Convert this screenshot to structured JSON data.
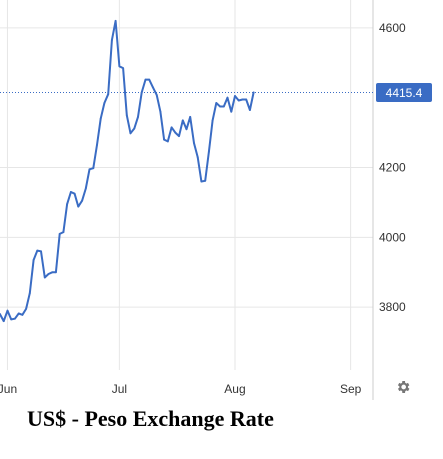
{
  "caption": "US$ - Peso Exchange Rate",
  "settings_icon": "gear-icon",
  "colors": {
    "line": "#3a6cc4",
    "grid": "#e6e6e6",
    "axis": "#cccccc",
    "price_tag": "#3a6cc4",
    "text": "#333333"
  },
  "chart_data": {
    "type": "line",
    "title": "US$ - Peso Exchange Rate",
    "xlabel": "",
    "ylabel": "",
    "ylim": [
      3620,
      4680
    ],
    "y_ticks": [
      3800,
      4000,
      4200,
      4600
    ],
    "x_ticks": [
      {
        "label": "Jun",
        "t": 0
      },
      {
        "label": "Jul",
        "t": 30
      },
      {
        "label": "Aug",
        "t": 61
      },
      {
        "label": "Sep",
        "t": 92
      }
    ],
    "x_range": [
      -2,
      98
    ],
    "grid": true,
    "last_value_label": "4415.4",
    "series": [
      {
        "points": [
          [
            -2,
            3780
          ],
          [
            -1,
            3760
          ],
          [
            0,
            3790
          ],
          [
            1,
            3765
          ],
          [
            2,
            3767
          ],
          [
            3,
            3782
          ],
          [
            4,
            3778
          ],
          [
            5,
            3795
          ],
          [
            6,
            3840
          ],
          [
            7,
            3935
          ],
          [
            8,
            3962
          ],
          [
            9,
            3960
          ],
          [
            10,
            3885
          ],
          [
            11,
            3895
          ],
          [
            12,
            3900
          ],
          [
            13,
            3900
          ],
          [
            14,
            4010
          ],
          [
            15,
            4015
          ],
          [
            16,
            4095
          ],
          [
            17,
            4130
          ],
          [
            18,
            4125
          ],
          [
            19,
            4088
          ],
          [
            20,
            4105
          ],
          [
            21,
            4140
          ],
          [
            22,
            4195
          ],
          [
            23,
            4198
          ],
          [
            24,
            4265
          ],
          [
            25,
            4340
          ],
          [
            26,
            4385
          ],
          [
            27,
            4410
          ],
          [
            28,
            4565
          ],
          [
            29,
            4620
          ],
          [
            30,
            4490
          ],
          [
            31,
            4485
          ],
          [
            32,
            4350
          ],
          [
            33,
            4298
          ],
          [
            34,
            4312
          ],
          [
            35,
            4345
          ],
          [
            36,
            4415
          ],
          [
            37,
            4452
          ],
          [
            38,
            4452
          ],
          [
            39,
            4430
          ],
          [
            40,
            4408
          ],
          [
            41,
            4360
          ],
          [
            42,
            4280
          ],
          [
            43,
            4275
          ],
          [
            44,
            4315
          ],
          [
            45,
            4300
          ],
          [
            46,
            4290
          ],
          [
            47,
            4335
          ],
          [
            48,
            4310
          ],
          [
            49,
            4345
          ],
          [
            50,
            4270
          ],
          [
            51,
            4230
          ],
          [
            52,
            4160
          ],
          [
            53,
            4162
          ],
          [
            54,
            4245
          ],
          [
            55,
            4335
          ],
          [
            56,
            4385
          ],
          [
            57,
            4375
          ],
          [
            58,
            4375
          ],
          [
            59,
            4400
          ],
          [
            60,
            4360
          ],
          [
            61,
            4405
          ],
          [
            62,
            4392
          ],
          [
            63,
            4395
          ],
          [
            64,
            4395
          ],
          [
            65,
            4365
          ],
          [
            66,
            4415
          ]
        ]
      }
    ]
  }
}
